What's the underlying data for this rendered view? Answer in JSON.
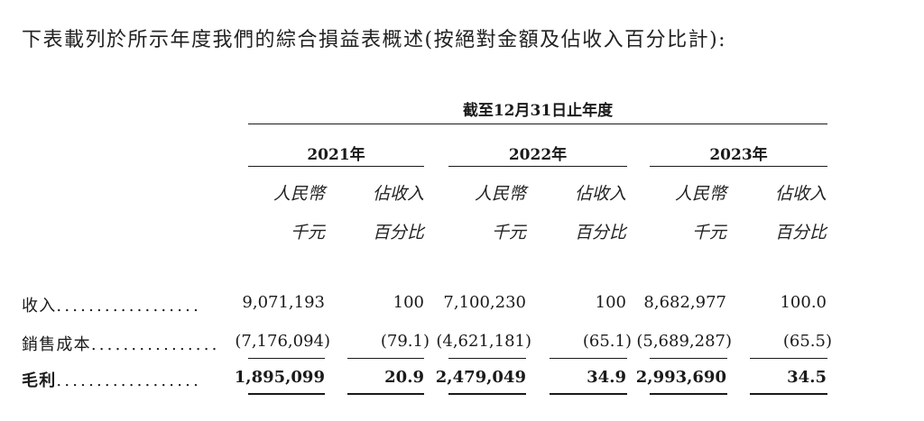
{
  "intro_text": "下表載列於所示年度我們的綜合損益表概述(按絕對金額及佔收入百分比計):",
  "period_title": "截至12月31日止年度",
  "years": [
    "2021年",
    "2022年",
    "2023年"
  ],
  "unit_headers": {
    "amount_line1": "人民幣",
    "amount_line2": "千元",
    "pct_line1": "佔收入",
    "pct_line2": "百分比"
  },
  "rows": [
    {
      "label": "收入",
      "dots": "..................",
      "values": [
        "9,071,193",
        "100",
        "7,100,230",
        "100",
        "8,682,977",
        "100.0"
      ]
    },
    {
      "label": "銷售成本",
      "dots": "................",
      "values": [
        "(7,176,094)",
        "(79.1)",
        "(4,621,181)",
        "(65.1)",
        "(5,689,287)",
        "(65.5)"
      ]
    },
    {
      "label": "毛利",
      "dots": "..................",
      "values": [
        "1,895,099",
        "20.9",
        "2,479,049",
        "34.9",
        "2,993,690",
        "34.5"
      ]
    }
  ]
}
